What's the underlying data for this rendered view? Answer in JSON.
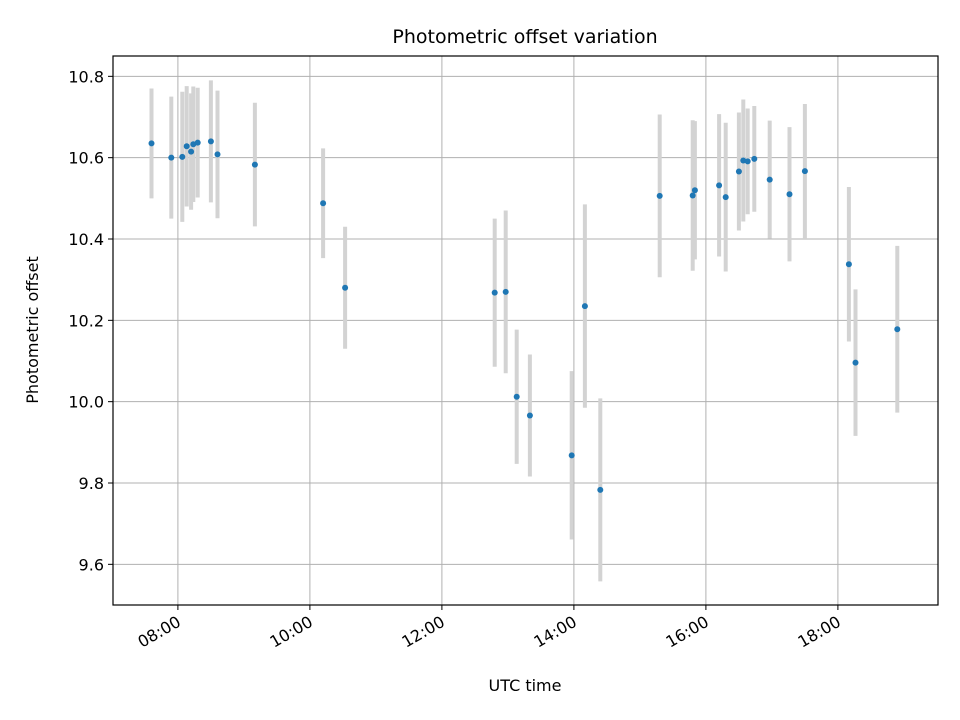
{
  "chart_data": {
    "type": "scatter",
    "title": "Photometric offset variation",
    "xlabel": "UTC time",
    "ylabel": "Photometric offset",
    "x_unit": "UTC hours (HH:MM)",
    "xlim": [
      "07:01",
      "19:31"
    ],
    "ylim": [
      9.5,
      10.85
    ],
    "x_ticks": [
      "08:00",
      "10:00",
      "12:00",
      "14:00",
      "16:00",
      "18:00"
    ],
    "y_ticks": [
      9.6,
      9.8,
      10.0,
      10.2,
      10.4,
      10.6,
      10.8
    ],
    "grid": true,
    "legend": "none",
    "colors": {
      "points": "#1f77b4",
      "error_bars": "#d3d3d3",
      "grid": "#b0b0b0"
    },
    "series": [
      {
        "points": [
          {
            "x": "07:36",
            "y": 10.635,
            "err": 0.135
          },
          {
            "x": "07:54",
            "y": 10.6,
            "err": 0.15
          },
          {
            "x": "08:04",
            "y": 10.602,
            "err": 0.16
          },
          {
            "x": "08:08",
            "y": 10.628,
            "err": 0.148
          },
          {
            "x": "08:12",
            "y": 10.615,
            "err": 0.143
          },
          {
            "x": "08:14",
            "y": 10.633,
            "err": 0.142
          },
          {
            "x": "08:18",
            "y": 10.637,
            "err": 0.135
          },
          {
            "x": "08:30",
            "y": 10.64,
            "err": 0.15
          },
          {
            "x": "08:36",
            "y": 10.608,
            "err": 0.157
          },
          {
            "x": "09:10",
            "y": 10.583,
            "err": 0.152
          },
          {
            "x": "10:12",
            "y": 10.488,
            "err": 0.135
          },
          {
            "x": "10:32",
            "y": 10.28,
            "err": 0.15
          },
          {
            "x": "12:48",
            "y": 10.268,
            "err": 0.182
          },
          {
            "x": "12:58",
            "y": 10.27,
            "err": 0.2
          },
          {
            "x": "13:08",
            "y": 10.012,
            "err": 0.165
          },
          {
            "x": "13:20",
            "y": 9.966,
            "err": 0.15
          },
          {
            "x": "13:58",
            "y": 9.868,
            "err": 0.207
          },
          {
            "x": "14:10",
            "y": 10.235,
            "err": 0.25
          },
          {
            "x": "14:24",
            "y": 9.783,
            "err": 0.225
          },
          {
            "x": "15:18",
            "y": 10.506,
            "err": 0.2
          },
          {
            "x": "15:48",
            "y": 10.507,
            "err": 0.185
          },
          {
            "x": "15:50",
            "y": 10.52,
            "err": 0.17
          },
          {
            "x": "16:12",
            "y": 10.532,
            "err": 0.175
          },
          {
            "x": "16:18",
            "y": 10.503,
            "err": 0.183
          },
          {
            "x": "16:30",
            "y": 10.566,
            "err": 0.145
          },
          {
            "x": "16:34",
            "y": 10.593,
            "err": 0.15
          },
          {
            "x": "16:38",
            "y": 10.591,
            "err": 0.13
          },
          {
            "x": "16:44",
            "y": 10.597,
            "err": 0.13
          },
          {
            "x": "16:58",
            "y": 10.546,
            "err": 0.145
          },
          {
            "x": "17:16",
            "y": 10.51,
            "err": 0.165
          },
          {
            "x": "17:30",
            "y": 10.567,
            "err": 0.165
          },
          {
            "x": "18:10",
            "y": 10.338,
            "err": 0.19
          },
          {
            "x": "18:16",
            "y": 10.096,
            "err": 0.18
          },
          {
            "x": "18:54",
            "y": 10.178,
            "err": 0.205
          }
        ]
      }
    ]
  }
}
